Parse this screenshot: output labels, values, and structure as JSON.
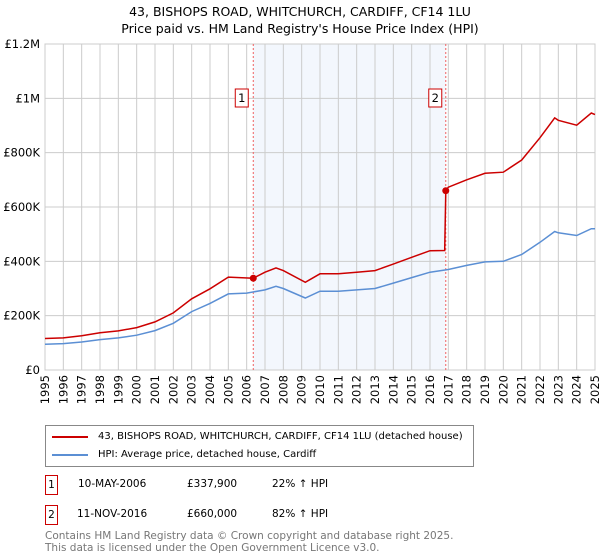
{
  "title": {
    "line1": "43, BISHOPS ROAD, WHITCHURCH, CARDIFF, CF14 1LU",
    "line2": "Price paid vs. HM Land Registry's House Price Index (HPI)"
  },
  "chart_data": {
    "type": "line",
    "title": "43, BISHOPS ROAD, WHITCHURCH, CARDIFF, CF14 1LU - Price paid vs. HM Land Registry's House Price Index (HPI)",
    "xlim": [
      1995,
      2025
    ],
    "ylim": [
      0,
      1200000
    ],
    "x_ticks": [
      "1995",
      "1996",
      "1997",
      "1998",
      "1999",
      "2000",
      "2001",
      "2002",
      "2003",
      "2004",
      "2005",
      "2006",
      "2007",
      "2008",
      "2009",
      "2010",
      "2011",
      "2012",
      "2013",
      "2014",
      "2015",
      "2016",
      "2017",
      "2018",
      "2019",
      "2020",
      "2021",
      "2022",
      "2023",
      "2024",
      "2025"
    ],
    "y_ticks": [
      {
        "v": 0,
        "label": "£0"
      },
      {
        "v": 200000,
        "label": "£200K"
      },
      {
        "v": 400000,
        "label": "£400K"
      },
      {
        "v": 600000,
        "label": "£600K"
      },
      {
        "v": 800000,
        "label": "£800K"
      },
      {
        "v": 1000000,
        "label": "£1M"
      },
      {
        "v": 1200000,
        "label": "£1.2M"
      }
    ],
    "grid": true,
    "shaded_range": [
      2006.36,
      2016.86
    ],
    "series": [
      {
        "name": "43, BISHOPS ROAD, WHITCHURCH, CARDIFF, CF14 1LU (detached house)",
        "color": "#cc0000",
        "x": [
          1995,
          1996,
          1997,
          1998,
          1999,
          2000,
          2001,
          2002,
          2003,
          2004,
          2005,
          2006.36,
          2007,
          2007.6,
          2008,
          2009.2,
          2010,
          2011,
          2012,
          2013,
          2014,
          2015,
          2016,
          2016.8,
          2016.86,
          2017,
          2018,
          2019,
          2020,
          2021,
          2022,
          2022.8,
          2023,
          2024,
          2024.8,
          2025
        ],
        "y": [
          116000,
          118000,
          126000,
          137000,
          144000,
          156000,
          177000,
          210000,
          262000,
          299000,
          342000,
          337900,
          360000,
          376000,
          366000,
          323000,
          354000,
          354000,
          360000,
          366000,
          390000,
          415000,
          439000,
          440000,
          660000,
          673000,
          700000,
          724000,
          728000,
          773000,
          855000,
          928000,
          919000,
          901000,
          946000,
          940000
        ]
      },
      {
        "name": "HPI: Average price, detached house, Cardiff",
        "color": "#5b8fd4",
        "x": [
          1995,
          1996,
          1997,
          1998,
          1999,
          2000,
          2001,
          2002,
          2003,
          2004,
          2005,
          2006,
          2007,
          2007.6,
          2008,
          2009.2,
          2010,
          2011,
          2012,
          2013,
          2014,
          2015,
          2016,
          2017,
          2018,
          2019,
          2020,
          2021,
          2022,
          2022.8,
          2023,
          2024,
          2024.8,
          2025
        ],
        "y": [
          95000,
          97000,
          103000,
          112000,
          118000,
          128000,
          145000,
          172000,
          215000,
          245000,
          280000,
          283000,
          295000,
          308000,
          300000,
          265000,
          290000,
          290000,
          295000,
          300000,
          320000,
          340000,
          360000,
          370000,
          385000,
          398000,
          400000,
          425000,
          470000,
          510000,
          505000,
          495000,
          520000,
          520000
        ]
      }
    ],
    "annotations": [
      {
        "label": "1",
        "x": 2006.36,
        "y": 337900
      },
      {
        "label": "2",
        "x": 2016.86,
        "y": 660000
      }
    ]
  },
  "legend": {
    "items": [
      {
        "label": "43, BISHOPS ROAD, WHITCHURCH, CARDIFF, CF14 1LU (detached house)",
        "color": "#cc0000"
      },
      {
        "label": "HPI: Average price, detached house, Cardiff",
        "color": "#5b8fd4"
      }
    ]
  },
  "sales": [
    {
      "num": "1",
      "date": "10-MAY-2006",
      "price": "£337,900",
      "hpi": "22% ↑ HPI"
    },
    {
      "num": "2",
      "date": "11-NOV-2016",
      "price": "£660,000",
      "hpi": "82% ↑ HPI"
    }
  ],
  "footer": {
    "line1": "Contains HM Land Registry data © Crown copyright and database right 2025.",
    "line2": "This data is licensed under the Open Government Licence v3.0."
  }
}
